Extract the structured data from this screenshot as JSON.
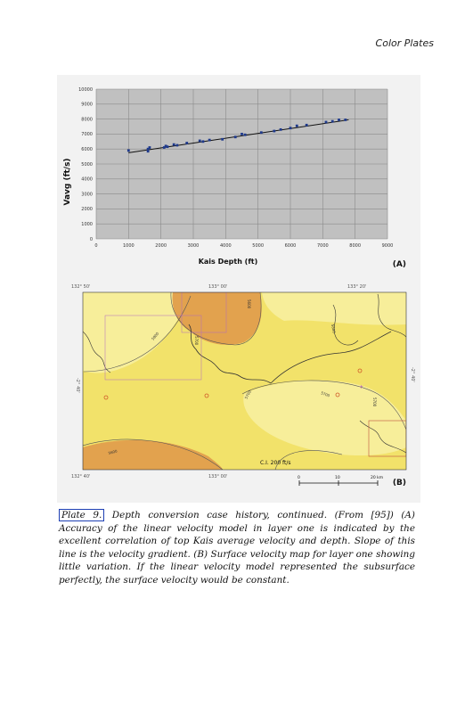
{
  "running_head": "Color Plates",
  "panel_a": {
    "label": "(A)",
    "y_axis_label": "Vavg (ft/s)",
    "x_axis_label": "Kais Depth (ft)",
    "y_ticks": [
      "10000",
      "9000",
      "8000",
      "7000",
      "6000",
      "5000",
      "4000",
      "3000",
      "2000",
      "1000",
      "0"
    ],
    "x_ticks": [
      "0",
      "1000",
      "2000",
      "3000",
      "4000",
      "5000",
      "6000",
      "7000",
      "8000",
      "9000"
    ]
  },
  "panel_b": {
    "label": "(B)",
    "top_coords": [
      "132° 50'",
      "133° 00'",
      "133° 20'"
    ],
    "bottom_coords": [
      "132° 40'",
      "133° 00'"
    ],
    "side_coord_left": "-2° 40'",
    "side_coord_right": "-2° 40'",
    "contour_labels": [
      "5800",
      "5700",
      "5600",
      "5700",
      "5700",
      "5800",
      "5700",
      "5600"
    ],
    "contour_interval": "C.I. 200 ft/s",
    "scale_labels": [
      "0",
      "10",
      "20 km"
    ]
  },
  "chart_data": {
    "type": "scatter",
    "title": "",
    "xlabel": "Kais Depth (ft)",
    "ylabel": "Vavg (ft/s)",
    "xlim": [
      0,
      9000
    ],
    "ylim": [
      0,
      10000
    ],
    "grid": true,
    "series": [
      {
        "points": [
          [
            1000,
            5900
          ],
          [
            1600,
            5850
          ],
          [
            1600,
            6000
          ],
          [
            1650,
            6100
          ],
          [
            2100,
            6100
          ],
          [
            2150,
            6200
          ],
          [
            2200,
            6150
          ],
          [
            2400,
            6300
          ],
          [
            2500,
            6250
          ],
          [
            2800,
            6400
          ],
          [
            3200,
            6550
          ],
          [
            3300,
            6500
          ],
          [
            3500,
            6600
          ],
          [
            3900,
            6650
          ],
          [
            4300,
            6800
          ],
          [
            4500,
            7000
          ],
          [
            4600,
            6950
          ],
          [
            5100,
            7100
          ],
          [
            5500,
            7200
          ],
          [
            5700,
            7300
          ],
          [
            6000,
            7400
          ],
          [
            6200,
            7550
          ],
          [
            6500,
            7600
          ],
          [
            7100,
            7800
          ],
          [
            7300,
            7850
          ],
          [
            7500,
            7950
          ],
          [
            7700,
            7950
          ]
        ]
      }
    ],
    "trend_line": [
      [
        1000,
        5750
      ],
      [
        7800,
        7950
      ]
    ]
  },
  "caption": {
    "plate_ref": "Plate 9.",
    "text": " Depth conversion case history, continued. (From [95]) (A) Accuracy of the linear velocity model in layer one is indicated by the excellent correlation of top Kais average velocity and depth. Slope of this line is the velocity gradient. (B) Surface velocity map for layer one showing little variation. If the linear velocity model represented the subsurface perfectly, the surface velocity would be constant."
  },
  "colors": {
    "plot_bg": "#c0c0c0",
    "map_yellow": "#f2e26a",
    "map_pale": "#f7ee9a",
    "map_orange": "#e2a24e",
    "marker": "#1f3a8c"
  }
}
